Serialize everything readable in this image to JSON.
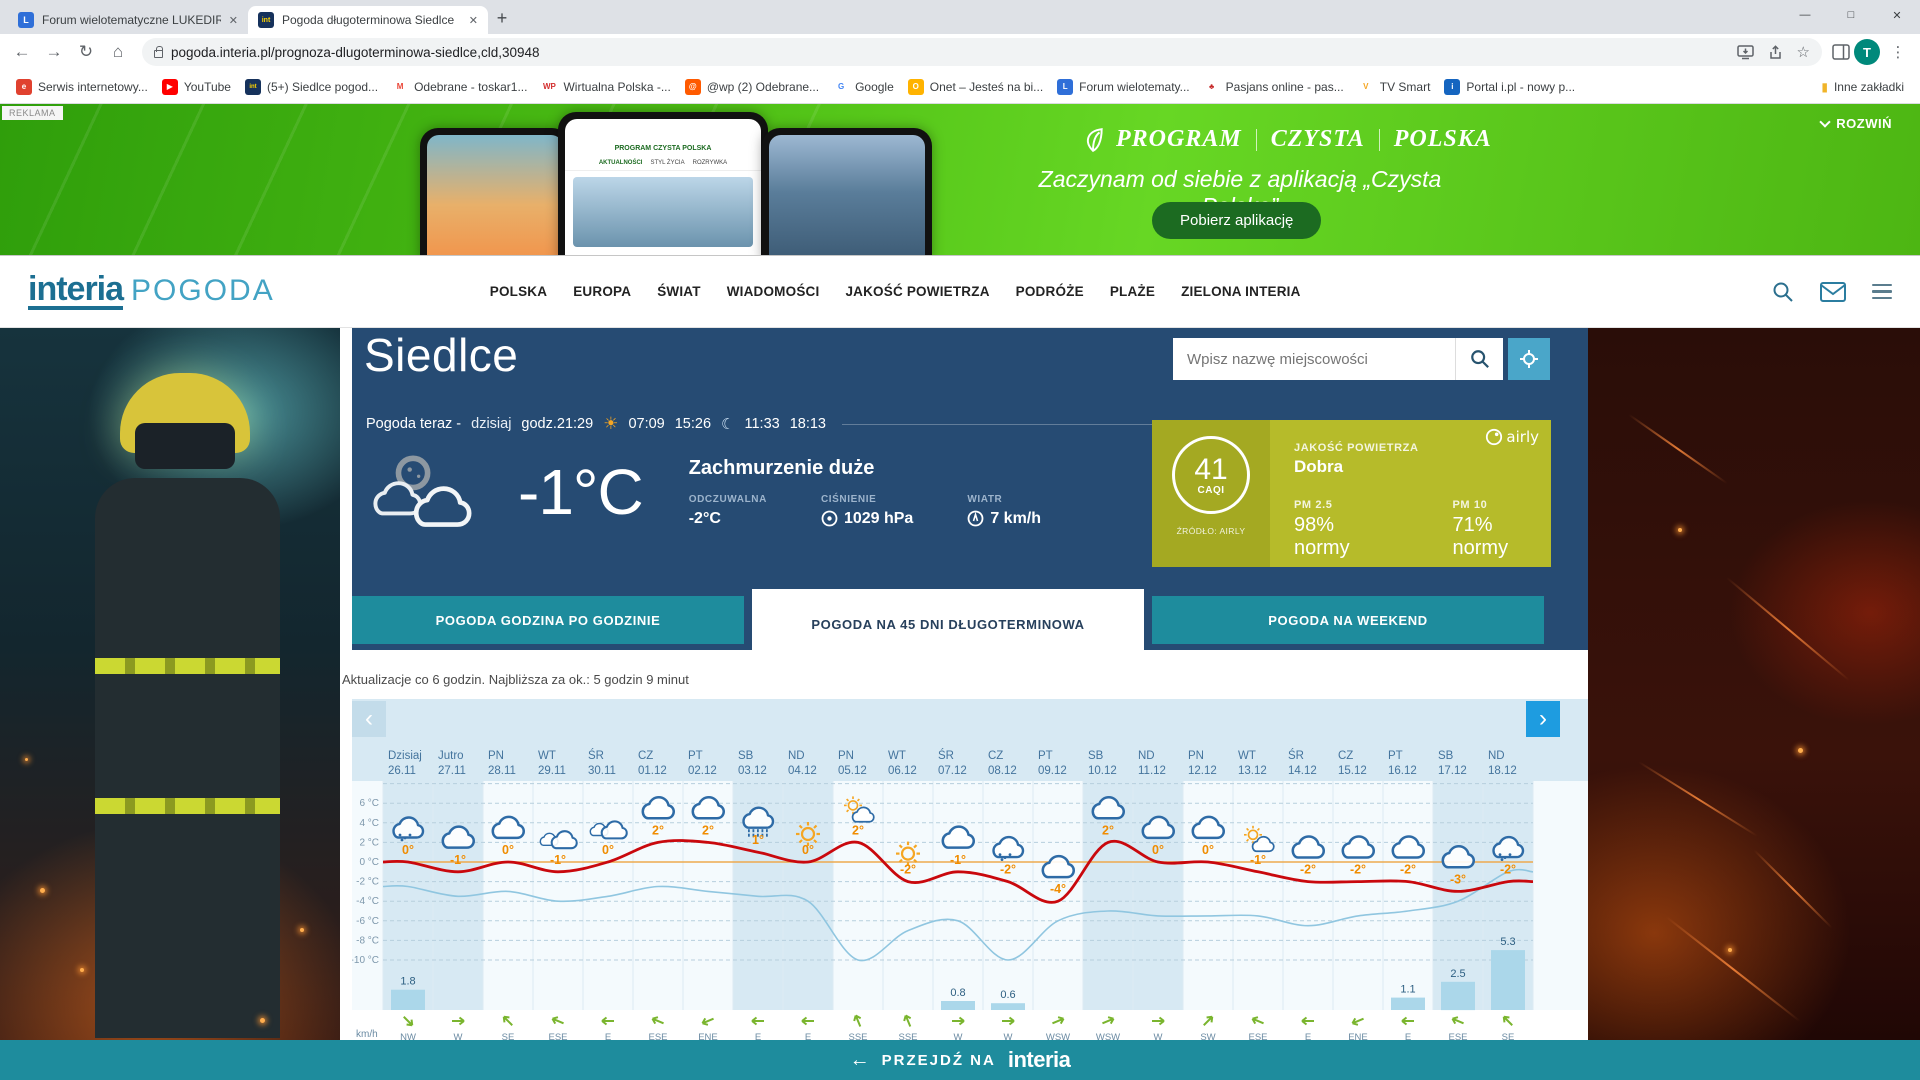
{
  "browser": {
    "tabs": [
      {
        "title": "Forum wielotematyczne LUKEDIR",
        "favicon_text": "L",
        "favicon_bg": "#2f6fd8",
        "favicon_fg": "#ffffff"
      },
      {
        "title": "Pogoda długoterminowa Siedlce",
        "favicon_text": "int",
        "favicon_bg": "#16325c",
        "favicon_fg": "#ffd500"
      }
    ],
    "new_tab_glyph": "+",
    "window_controls": {
      "minimize": "—",
      "maximize": "□",
      "close": "✕"
    },
    "url": "pogoda.interia.pl/prognoza-dlugoterminowa-siedlce,cld,30948",
    "avatar_letter": "T",
    "bookmarks": [
      {
        "label": "Serwis internetowy...",
        "glyph": "e",
        "bg": "#e0412f",
        "fg": "#ffffff"
      },
      {
        "label": "YouTube",
        "glyph": "▶",
        "bg": "#ff0000",
        "fg": "#ffffff"
      },
      {
        "label": "(5+) Siedlce pogod...",
        "glyph": "int",
        "bg": "#16325c",
        "fg": "#ffd500"
      },
      {
        "label": "Odebrane - toskar1...",
        "glyph": "M",
        "bg": "#ffffff",
        "fg": "#ea4335"
      },
      {
        "label": "Wirtualna Polska -...",
        "glyph": "WP",
        "bg": "#ffffff",
        "fg": "#d32f2f"
      },
      {
        "label": "@wp (2) Odebrane...",
        "glyph": "@",
        "bg": "#ff5a00",
        "fg": "#ffffff"
      },
      {
        "label": "Google",
        "glyph": "G",
        "bg": "#ffffff",
        "fg": "#4285f4"
      },
      {
        "label": "Onet – Jesteś na bi...",
        "glyph": "O",
        "bg": "#ffb300",
        "fg": "#ffffff"
      },
      {
        "label": "Forum wielotematy...",
        "glyph": "L",
        "bg": "#2f6fd8",
        "fg": "#ffffff"
      },
      {
        "label": "Pasjans online - pas...",
        "glyph": "♣",
        "bg": "#ffffff",
        "fg": "#c62828"
      },
      {
        "label": "TV Smart",
        "glyph": "V",
        "bg": "#ffffff",
        "fg": "#f5a623"
      },
      {
        "label": "Portal i.pl - nowy p...",
        "glyph": "i",
        "bg": "#1565c0",
        "fg": "#ffffff"
      }
    ],
    "other_bookmarks": "Inne zakładki"
  },
  "ad_banner": {
    "tag": "REKLAMA",
    "expand": "ROZWIŃ",
    "brand_words": [
      "PROGRAM",
      "CZYSTA",
      "POLSKA"
    ],
    "tagline": "Zaczynam od siebie z aplikacją „Czysta Polska”",
    "cta": "Pobierz aplikację",
    "phone_app_header": "PROGRAM CZYSTA POLSKA",
    "phone_app_tabs": [
      "AKTUALNOŚCI",
      "STYL ŻYCIA",
      "ROZRYWKA"
    ]
  },
  "site_header": {
    "logo_main": "interia",
    "logo_sub": "POGODA",
    "nav": [
      "POLSKA",
      "EUROPA",
      "ŚWIAT",
      "WIADOMOŚCI",
      "JAKOŚĆ POWIETRZA",
      "PODRÓŻE",
      "PLAŻE",
      "ZIELONA INTERIA"
    ]
  },
  "hero": {
    "city": "Siedlce",
    "search_placeholder": "Wpisz nazwę miejscowości",
    "now_label": "Pogoda teraz -",
    "now_day": "dzisiaj",
    "now_time": "godz.21:29",
    "sunrise": "07:09",
    "sunset": "15:26",
    "moonrise": "11:33",
    "moonset": "18:13",
    "temp": "-1°C",
    "description": "Zachmurzenie duże",
    "feels_label": "ODCZUWALNA",
    "feels_value": "-2°C",
    "pressure_label": "CIŚNIENIE",
    "pressure_value": "1029 hPa",
    "wind_label": "WIATR",
    "wind_value": "7 km/h"
  },
  "air_quality": {
    "value": "41",
    "unit": "CAQI",
    "source": "ŹRÓDŁO: AIRLY",
    "label": "JAKOŚĆ POWIETRZA",
    "rating": "Dobra",
    "pm25_label": "PM 2.5",
    "pm25_value": "98% normy",
    "pm10_label": "PM 10",
    "pm10_value": "71% normy",
    "brand": "airly"
  },
  "forecast_tabs": {
    "items": [
      "POGODA GODZINA PO GODZINIE",
      "POGODA NA 45 DNI DŁUGOTERMINOWA",
      "POGODA NA WEEKEND"
    ],
    "active_index": 1
  },
  "update_info": "Aktualizacje co 6 godzin. Najbliższa za ok.: 5 godzin 9 minut",
  "chart_data": {
    "type": "line",
    "y_ticks": [
      "6 °C",
      "4 °C",
      "2 °C",
      "0 °C",
      "-2 °C",
      "-4 °C",
      "-6 °C",
      "-8 °C",
      "-10 °C"
    ],
    "ylim": [
      -11,
      8
    ],
    "wind_unit": "km/h",
    "days": [
      {
        "day": "Dzisiaj",
        "date": "26.11",
        "temp": 0,
        "icon": "snow-cloud",
        "wind": "NW",
        "precip": 1.8,
        "weekend": true
      },
      {
        "day": "Jutro",
        "date": "27.11",
        "temp": -1,
        "icon": "cloud",
        "wind": "W",
        "weekend": true
      },
      {
        "day": "PN",
        "date": "28.11",
        "temp": 0,
        "icon": "cloud",
        "wind": "SE"
      },
      {
        "day": "WT",
        "date": "29.11",
        "temp": -1,
        "icon": "clouds",
        "wind": "ESE"
      },
      {
        "day": "ŚR",
        "date": "30.11",
        "temp": 0,
        "icon": "clouds",
        "wind": "E"
      },
      {
        "day": "CZ",
        "date": "01.12",
        "temp": 2,
        "icon": "cloud",
        "wind": "ESE"
      },
      {
        "day": "PT",
        "date": "02.12",
        "temp": 2,
        "icon": "cloud",
        "wind": "ENE"
      },
      {
        "day": "SB",
        "date": "03.12",
        "temp": 1,
        "icon": "sleet-cloud",
        "wind": "E",
        "weekend": true
      },
      {
        "day": "ND",
        "date": "04.12",
        "temp": 0,
        "icon": "sun",
        "wind": "E",
        "weekend": true
      },
      {
        "day": "PN",
        "date": "05.12",
        "temp": 2,
        "icon": "sun-cloud",
        "wind": "SSE"
      },
      {
        "day": "WT",
        "date": "06.12",
        "temp": -2,
        "icon": "sun",
        "wind": "SSE"
      },
      {
        "day": "ŚR",
        "date": "07.12",
        "temp": -1,
        "icon": "cloud",
        "wind": "W",
        "precip": 0.8
      },
      {
        "day": "CZ",
        "date": "08.12",
        "temp": -2,
        "icon": "snow-cloud",
        "wind": "W",
        "precip": 0.6
      },
      {
        "day": "PT",
        "date": "09.12",
        "temp": -4,
        "icon": "cloud",
        "wind": "WSW"
      },
      {
        "day": "SB",
        "date": "10.12",
        "temp": 2,
        "icon": "cloud",
        "wind": "WSW",
        "weekend": true
      },
      {
        "day": "ND",
        "date": "11.12",
        "temp": 0,
        "icon": "cloud",
        "wind": "W",
        "weekend": true
      },
      {
        "day": "PN",
        "date": "12.12",
        "temp": 0,
        "icon": "cloud",
        "wind": "SW"
      },
      {
        "day": "WT",
        "date": "13.12",
        "temp": -1,
        "icon": "sun-cloud",
        "wind": "ESE"
      },
      {
        "day": "ŚR",
        "date": "14.12",
        "temp": -2,
        "icon": "cloud",
        "wind": "E"
      },
      {
        "day": "CZ",
        "date": "15.12",
        "temp": -2,
        "icon": "cloud",
        "wind": "ENE"
      },
      {
        "day": "PT",
        "date": "16.12",
        "temp": -2,
        "icon": "cloud",
        "wind": "E",
        "precip": 1.1
      },
      {
        "day": "SB",
        "date": "17.12",
        "temp": -3,
        "icon": "cloud",
        "wind": "ESE",
        "precip": 2.5,
        "weekend": true
      },
      {
        "day": "ND",
        "date": "18.12",
        "temp": -2,
        "icon": "snow-cloud",
        "wind": "SE",
        "precip": 5.3,
        "weekend": true
      }
    ],
    "series": [
      {
        "name": "temperatura",
        "color": "#c9080d",
        "values": [
          0,
          -1,
          0,
          -1,
          0,
          2,
          2,
          1,
          0,
          2,
          -2,
          -1,
          -2,
          -4,
          2,
          0,
          0,
          -1,
          -2,
          -2,
          -2,
          -3,
          -2
        ]
      },
      {
        "name": "temperatura odczuwalna",
        "color": "#90c6e0",
        "values": [
          -2.5,
          -3.5,
          -3,
          -4,
          -3.5,
          -2.5,
          -3,
          -3.5,
          -4,
          -10,
          -7,
          -6,
          -10,
          -6,
          -5,
          -5.5,
          -5.5,
          -5.5,
          -6.5,
          -5.5,
          -5,
          -4,
          -1
        ]
      }
    ]
  },
  "chart_nav": {
    "prev": "‹",
    "next": "›"
  },
  "footer": {
    "arrow": "←",
    "go_to": "PRZEJDŹ NA",
    "brand": "interia"
  },
  "theme": {
    "navy": "#264b73",
    "teal": "#1e8c9d",
    "olive": "#b6bb2a",
    "olive_dark": "#a4a922",
    "temp_label": "#f08c00",
    "red_line": "#c9080d",
    "blue_line": "#90c6e0",
    "zero_line": "#eda94e",
    "grid": "#b7cfdd",
    "weekend_bg": "#d7e9f3",
    "plot_bg": "#f4fafd",
    "bar_fill": "#abd7ea",
    "bar_label": "#2d5f82",
    "wind_green": "#7ab52e",
    "day_label": "#44749d",
    "tick_label": "#7d97ab",
    "icon_blue": "#2e6ba6",
    "icon_sun": "#f5a623"
  }
}
